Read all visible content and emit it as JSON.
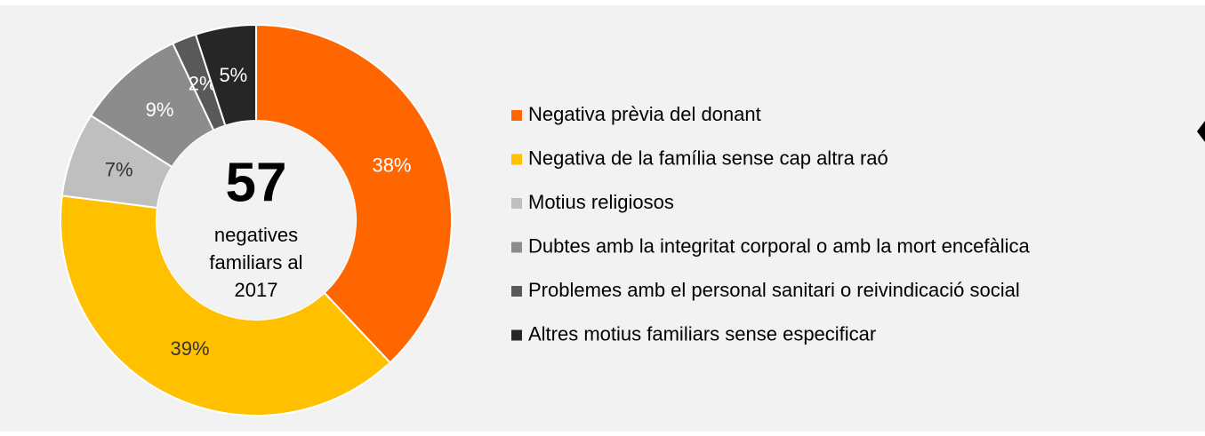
{
  "chart_data": {
    "type": "pie",
    "center_value": "57",
    "center_text": [
      "negatives",
      "familiars al",
      "2017"
    ],
    "categories": [
      "Negativa prèvia del donant",
      "Negativa de la família sense cap altra raó",
      "Motius religiosos",
      "Dubtes amb la integritat corporal o amb la mort encefàlica",
      "Problemes amb el personal sanitari o reivindicació social",
      "Altres motius familiars sense especificar"
    ],
    "values": [
      38,
      39,
      7,
      9,
      2,
      5
    ],
    "value_labels": [
      "38%",
      "39%",
      "7%",
      "9%",
      "2%",
      "5%"
    ],
    "colors": [
      "#ff6600",
      "#ffc000",
      "#bfbfbf",
      "#8c8c8c",
      "#595959",
      "#262626"
    ],
    "legend": "right"
  }
}
